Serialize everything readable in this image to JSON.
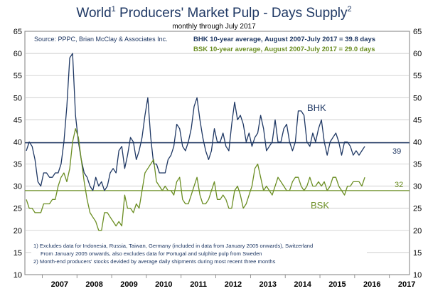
{
  "colors": {
    "bhk": "#1f3864",
    "bsk": "#6b8e23",
    "title": "#1f3864",
    "grid": "#bfbfbf",
    "border": "#7f7f7f",
    "footnote": "#1f3864"
  },
  "chart_data": {
    "type": "line",
    "title_main": "World",
    "title_sup": "1",
    "title_rest": " Producers' Market Pulp - Days Supply",
    "title_sup2": "2",
    "subtitle": "monthly through July 2017",
    "source": "Source: PPPC, Brian McClay & Associates Inc.",
    "ylim": [
      10,
      65
    ],
    "yticks": [
      10,
      15,
      20,
      25,
      30,
      35,
      40,
      45,
      50,
      55,
      60,
      65
    ],
    "xlim": [
      2006.5,
      2017.58
    ],
    "year_labels": [
      "2007",
      "2008",
      "2009",
      "2010",
      "2011",
      "2012",
      "2013",
      "2014",
      "2015",
      "2016",
      "2017"
    ],
    "annotations": {
      "bhk_avg_text": "BHK 10-year average, August 2007-July 2017 = 39.8 days",
      "bsk_avg_text": "BSK 10-year average, August 2007-July 2017 = 29.0 days",
      "bhk_label": "BHK",
      "bsk_label": "BSK",
      "bhk_end": "39",
      "bsk_end": "32"
    },
    "averages": {
      "bhk": 39.8,
      "bsk": 29.0
    },
    "footnotes": [
      "1) Excludes data for Indonesia, Russia, Taiwan, Germany (included in data from January 2005 onwards), Switzerland",
      "From January 2005 onwards, also excludes data for Portugal and sulphite pulp from Sweden",
      "2) Month-end producers' stocks devided by average daily shipments during most recent three months"
    ],
    "x_start": 2006.5,
    "series": [
      {
        "name": "BHK",
        "values": [
          38,
          40,
          39,
          36,
          31,
          30,
          33,
          33,
          32,
          32,
          33,
          33,
          35,
          40,
          48,
          59,
          60,
          46,
          40,
          36,
          33,
          32,
          30,
          29,
          32,
          30,
          31,
          29,
          30,
          33,
          34,
          33,
          38,
          39,
          34,
          37,
          41,
          40,
          36,
          38,
          41,
          46,
          50,
          41,
          35,
          35,
          33,
          33,
          33,
          36,
          37,
          39,
          44,
          43,
          39,
          38,
          40,
          43,
          48,
          50,
          45,
          41,
          38,
          36,
          38,
          43,
          40,
          40,
          42,
          39,
          38,
          44,
          49,
          45,
          46,
          44,
          40,
          42,
          39,
          41,
          42,
          46,
          43,
          38,
          39,
          40,
          45,
          40,
          40,
          43,
          44,
          40,
          38,
          40,
          47,
          47,
          46,
          40,
          39,
          42,
          40,
          43,
          45,
          40,
          37,
          40,
          41,
          42,
          40,
          37,
          40,
          40,
          39,
          37,
          38,
          37,
          38,
          39
        ],
        "end_label": "39"
      },
      {
        "name": "BSK",
        "values": [
          27,
          25,
          25,
          24,
          24,
          24,
          26,
          26,
          26,
          27,
          27,
          30,
          32,
          33,
          31,
          34,
          40,
          43,
          41,
          36,
          31,
          27,
          24,
          23,
          22,
          20,
          20,
          24,
          24,
          23,
          22,
          21,
          22,
          21,
          28,
          25,
          25,
          24,
          26,
          25,
          29,
          33,
          34,
          35,
          36,
          31,
          30,
          29,
          30,
          29,
          29,
          28,
          31,
          32,
          27,
          26,
          26,
          28,
          30,
          32,
          28,
          26,
          26,
          27,
          29,
          31,
          27,
          27,
          28,
          27,
          25,
          25,
          29,
          30,
          28,
          25,
          26,
          28,
          30,
          34,
          35,
          32,
          29,
          30,
          29,
          28,
          30,
          32,
          31,
          30,
          29,
          29,
          31,
          32,
          32,
          30,
          29,
          30,
          32,
          30,
          30,
          31,
          30,
          31,
          29,
          30,
          32,
          32,
          30,
          29,
          28,
          30,
          30,
          31,
          31,
          31,
          30,
          32
        ],
        "end_label": "32"
      }
    ]
  }
}
